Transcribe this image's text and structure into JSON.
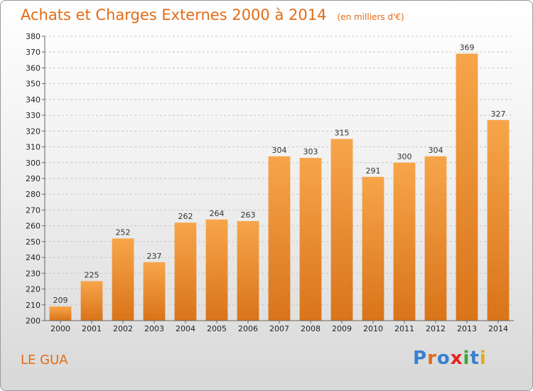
{
  "header": {
    "title": "Achats et Charges Externes 2000 à 2014",
    "unit": "(en milliers d'€)"
  },
  "footer": {
    "town": "LE GUA",
    "logo": "Proxiti"
  },
  "colors": {
    "accent": "#e36b16",
    "bar_top": "#f7a54a",
    "bar_bottom": "#d9741a",
    "logo_letters": [
      "#3a7fd0",
      "#e36b16",
      "#3a7fd0",
      "#e3231c",
      "#3aa63a",
      "#3a7fd0",
      "#e3a91c"
    ]
  },
  "chart_data": {
    "type": "bar",
    "categories": [
      "2000",
      "2001",
      "2002",
      "2003",
      "2004",
      "2005",
      "2006",
      "2007",
      "2008",
      "2009",
      "2010",
      "2011",
      "2012",
      "2013",
      "2014"
    ],
    "values": [
      209,
      225,
      252,
      237,
      262,
      264,
      263,
      304,
      303,
      315,
      291,
      300,
      304,
      369,
      327
    ],
    "ylim": [
      200,
      380
    ],
    "ytick_step": 10,
    "grid": true
  }
}
